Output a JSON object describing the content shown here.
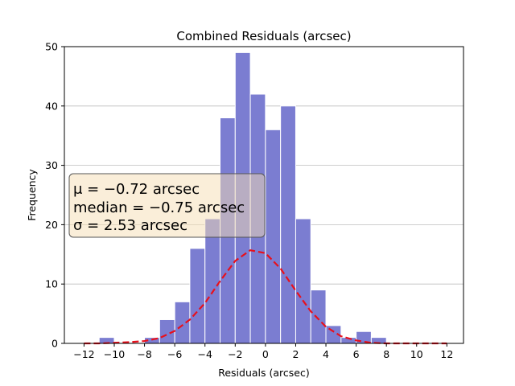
{
  "chart_data": {
    "type": "bar",
    "title": "Combined Residuals (arcsec)",
    "xlabel": "Residuals (arcsec)",
    "ylabel": "Frequency",
    "xlim": [
      -13.3,
      13.1
    ],
    "ylim": [
      0,
      50
    ],
    "xticks": [
      -12,
      -10,
      -8,
      -6,
      -4,
      -2,
      0,
      2,
      4,
      6,
      8,
      10,
      12
    ],
    "yticks": [
      0,
      10,
      20,
      30,
      40,
      50
    ],
    "grid": "horizontal",
    "bin_width": 1.0,
    "bin_edges": [
      -11.0,
      -10.0,
      -9.0,
      -8.0,
      -7.0,
      -6.0,
      -5.0,
      -4.0,
      -3.0,
      -2.0,
      -1.0,
      0.0,
      1.0,
      2.0,
      3.0,
      4.0,
      5.0,
      6.0,
      7.0,
      8.0
    ],
    "counts": [
      1,
      0,
      0,
      1,
      4,
      7,
      16,
      21,
      38,
      49,
      42,
      36,
      40,
      21,
      9,
      3,
      1,
      2,
      1
    ],
    "bar_color": "#7b7dd1",
    "series": [
      {
        "style": "dashed",
        "color": "#e8101c",
        "x": [
          -12,
          -11,
          -10,
          -9,
          -8,
          -7,
          -6,
          -5,
          -4,
          -3,
          -2,
          -1,
          0,
          1,
          2,
          3,
          4,
          5,
          6,
          7,
          8,
          9,
          10,
          11,
          12
        ],
        "y": [
          0.0,
          0.0,
          0.1,
          0.2,
          0.4,
          0.9,
          2.1,
          4.0,
          6.8,
          10.5,
          13.9,
          15.7,
          15.2,
          12.6,
          8.9,
          5.4,
          2.8,
          1.2,
          0.5,
          0.1,
          0.0,
          0.0,
          0.0,
          0.0,
          0.0
        ]
      }
    ],
    "annotation": {
      "lines": [
        "μ = −0.72 arcsec",
        "median = −0.75 arcsec",
        "σ = 2.53 arcsec"
      ],
      "position": "middle-left",
      "box_color": "#f5deb3"
    }
  }
}
